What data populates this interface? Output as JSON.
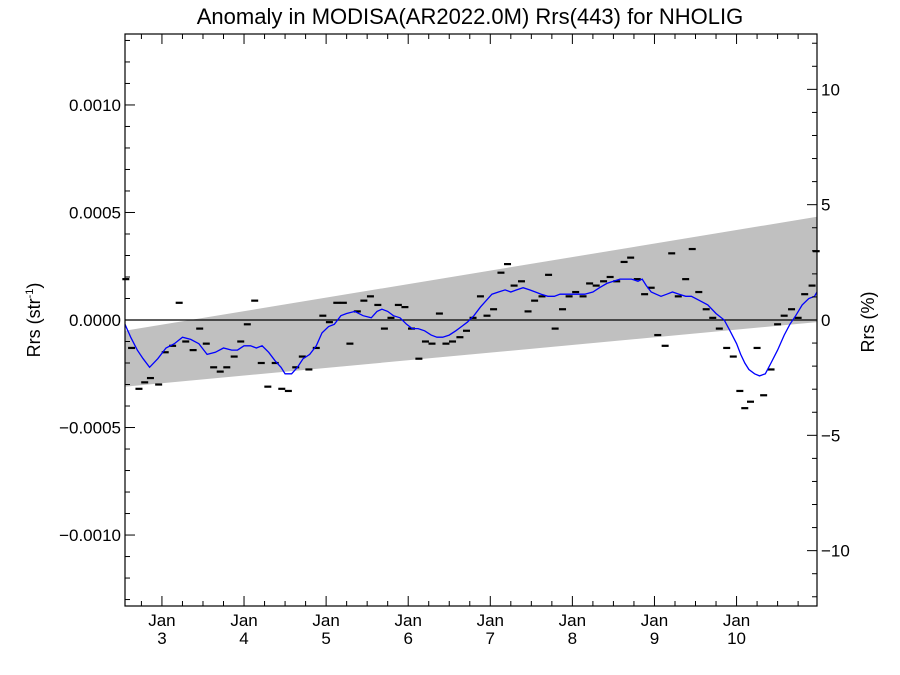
{
  "chart_data": {
    "type": "scatter",
    "title": "Anomaly in MODISA(AR2022.0M) Rrs(443) for NHOLIG",
    "ylabel_left_base": "Rrs (str",
    "ylabel_left_sup": "-1",
    "ylabel_left_close": ")",
    "ylabel_right": "Rrs (%)",
    "xlim": [
      2.55,
      10.98
    ],
    "ylim": [
      -0.00133,
      0.00133
    ],
    "y2lim": [
      -12.4,
      12.4
    ],
    "left_ticks": [
      {
        "value": 0.001,
        "label": "0.0010"
      },
      {
        "value": 0.0005,
        "label": "0.0005"
      },
      {
        "value": 0.0,
        "label": "0.0000"
      },
      {
        "value": -0.0005,
        "label": "−0.0005"
      },
      {
        "value": -0.001,
        "label": "−0.0010"
      }
    ],
    "right_ticks": [
      {
        "value": 10,
        "label": "10"
      },
      {
        "value": 5,
        "label": "5"
      },
      {
        "value": 0,
        "label": "0"
      },
      {
        "value": -5,
        "label": "−5"
      },
      {
        "value": -10,
        "label": "−10"
      }
    ],
    "x_ticks": [
      {
        "value": 3,
        "month": "Jan",
        "year": "3"
      },
      {
        "value": 4,
        "month": "Jan",
        "year": "4"
      },
      {
        "value": 5,
        "month": "Jan",
        "year": "5"
      },
      {
        "value": 6,
        "month": "Jan",
        "year": "6"
      },
      {
        "value": 7,
        "month": "Jan",
        "year": "7"
      },
      {
        "value": 8,
        "month": "Jan",
        "year": "8"
      },
      {
        "value": 9,
        "month": "Jan",
        "year": "9"
      },
      {
        "value": 10,
        "month": "Jan",
        "year": "10"
      }
    ],
    "band": {
      "upper": [
        [
          2.55,
          -5e-05
        ],
        [
          10.98,
          0.00048
        ]
      ],
      "lower": [
        [
          2.55,
          -0.00031
        ],
        [
          10.98,
          -1e-05
        ]
      ],
      "color": "#c0c0c0"
    },
    "zero_line": 0,
    "points": [
      [
        2.56,
        0.00019
      ],
      [
        2.63,
        -0.00013
      ],
      [
        2.72,
        -0.00032
      ],
      [
        2.79,
        -0.00029
      ],
      [
        2.86,
        -0.00027
      ],
      [
        2.96,
        -0.0003
      ],
      [
        3.04,
        -0.00015
      ],
      [
        3.13,
        -0.00012
      ],
      [
        3.21,
        8e-05
      ],
      [
        3.29,
        -0.0001
      ],
      [
        3.38,
        -0.00014
      ],
      [
        3.46,
        -4e-05
      ],
      [
        3.54,
        -0.00011
      ],
      [
        3.63,
        -0.00022
      ],
      [
        3.71,
        -0.00024
      ],
      [
        3.79,
        -0.00022
      ],
      [
        3.88,
        -0.00017
      ],
      [
        3.96,
        -0.0001
      ],
      [
        4.04,
        -2e-05
      ],
      [
        4.13,
        9e-05
      ],
      [
        4.21,
        -0.0002
      ],
      [
        4.29,
        -0.00031
      ],
      [
        4.38,
        -0.0002
      ],
      [
        4.46,
        -0.00032
      ],
      [
        4.54,
        -0.00033
      ],
      [
        4.63,
        -0.00022
      ],
      [
        4.71,
        -0.00017
      ],
      [
        4.79,
        -0.00023
      ],
      [
        4.88,
        -0.00013
      ],
      [
        4.96,
        2e-05
      ],
      [
        5.04,
        -1e-05
      ],
      [
        5.13,
        8e-05
      ],
      [
        5.21,
        8e-05
      ],
      [
        5.29,
        -0.00011
      ],
      [
        5.38,
        4e-05
      ],
      [
        5.46,
        9e-05
      ],
      [
        5.54,
        0.00011
      ],
      [
        5.63,
        7e-05
      ],
      [
        5.71,
        -4e-05
      ],
      [
        5.79,
        1e-05
      ],
      [
        5.88,
        7e-05
      ],
      [
        5.96,
        6e-05
      ],
      [
        6.04,
        -4e-05
      ],
      [
        6.13,
        -0.00018
      ],
      [
        6.21,
        -0.0001
      ],
      [
        6.29,
        -0.00011
      ],
      [
        6.38,
        3e-05
      ],
      [
        6.46,
        -0.00011
      ],
      [
        6.54,
        -0.0001
      ],
      [
        6.63,
        -8e-05
      ],
      [
        6.71,
        -5e-05
      ],
      [
        6.79,
        1e-05
      ],
      [
        6.88,
        0.00011
      ],
      [
        6.96,
        2e-05
      ],
      [
        7.04,
        5e-05
      ],
      [
        7.13,
        0.00022
      ],
      [
        7.21,
        0.00026
      ],
      [
        7.29,
        0.00016
      ],
      [
        7.38,
        0.00018
      ],
      [
        7.46,
        4e-05
      ],
      [
        7.54,
        9e-05
      ],
      [
        7.63,
        0.00011
      ],
      [
        7.71,
        0.00021
      ],
      [
        7.79,
        -4e-05
      ],
      [
        7.88,
        5e-05
      ],
      [
        7.96,
        0.00011
      ],
      [
        8.04,
        0.00013
      ],
      [
        8.13,
        0.00011
      ],
      [
        8.21,
        0.00017
      ],
      [
        8.29,
        0.00016
      ],
      [
        8.38,
        0.00018
      ],
      [
        8.46,
        0.0002
      ],
      [
        8.54,
        0.00018
      ],
      [
        8.63,
        0.00027
      ],
      [
        8.71,
        0.00029
      ],
      [
        8.79,
        0.00019
      ],
      [
        8.88,
        0.00012
      ],
      [
        8.96,
        0.00015
      ],
      [
        9.04,
        -7e-05
      ],
      [
        9.13,
        -0.00012
      ],
      [
        9.21,
        0.00031
      ],
      [
        9.29,
        0.00011
      ],
      [
        9.38,
        0.00019
      ],
      [
        9.46,
        0.00033
      ],
      [
        9.54,
        0.00013
      ],
      [
        9.63,
        5e-05
      ],
      [
        9.71,
        1e-05
      ],
      [
        9.79,
        -4e-05
      ],
      [
        9.88,
        -0.00013
      ],
      [
        9.96,
        -0.00017
      ],
      [
        10.04,
        -0.00033
      ],
      [
        10.1,
        -0.00041
      ],
      [
        10.17,
        -0.00038
      ],
      [
        10.25,
        -0.00013
      ],
      [
        10.33,
        -0.00035
      ],
      [
        10.42,
        -0.00023
      ],
      [
        10.5,
        -2e-05
      ],
      [
        10.58,
        2e-05
      ],
      [
        10.67,
        5e-05
      ],
      [
        10.75,
        1e-05
      ],
      [
        10.83,
        0.00012
      ],
      [
        10.92,
        0.00016
      ],
      [
        10.97,
        0.00032
      ]
    ],
    "smooth_line": {
      "color": "#0000ff",
      "points": [
        [
          2.55,
          -2e-05
        ],
        [
          2.62,
          -8e-05
        ],
        [
          2.7,
          -0.00014
        ],
        [
          2.77,
          -0.00018
        ],
        [
          2.85,
          -0.00022
        ],
        [
          2.95,
          -0.00018
        ],
        [
          3.05,
          -0.00013
        ],
        [
          3.15,
          -0.00011
        ],
        [
          3.25,
          -8e-05
        ],
        [
          3.35,
          -9e-05
        ],
        [
          3.45,
          -0.00011
        ],
        [
          3.55,
          -0.00016
        ],
        [
          3.65,
          -0.00015
        ],
        [
          3.75,
          -0.00013
        ],
        [
          3.85,
          -0.00014
        ],
        [
          3.92,
          -0.00014
        ],
        [
          4.0,
          -0.00012
        ],
        [
          4.08,
          -0.00012
        ],
        [
          4.15,
          -0.00013
        ],
        [
          4.22,
          -0.00012
        ],
        [
          4.3,
          -0.00015
        ],
        [
          4.38,
          -0.00019
        ],
        [
          4.45,
          -0.00022
        ],
        [
          4.5,
          -0.00025
        ],
        [
          4.58,
          -0.00025
        ],
        [
          4.65,
          -0.00022
        ],
        [
          4.72,
          -0.00018
        ],
        [
          4.8,
          -0.00016
        ],
        [
          4.88,
          -0.00012
        ],
        [
          4.95,
          -6e-05
        ],
        [
          5.03,
          -3e-05
        ],
        [
          5.1,
          -2e-05
        ],
        [
          5.18,
          2e-05
        ],
        [
          5.25,
          3e-05
        ],
        [
          5.35,
          4e-05
        ],
        [
          5.45,
          2e-05
        ],
        [
          5.55,
          1e-05
        ],
        [
          5.62,
          4e-05
        ],
        [
          5.68,
          5e-05
        ],
        [
          5.75,
          4e-05
        ],
        [
          5.82,
          2e-05
        ],
        [
          5.9,
          1e-05
        ],
        [
          5.98,
          -2e-05
        ],
        [
          6.05,
          -4e-05
        ],
        [
          6.12,
          -4e-05
        ],
        [
          6.2,
          -5e-05
        ],
        [
          6.28,
          -7e-05
        ],
        [
          6.35,
          -8e-05
        ],
        [
          6.42,
          -8e-05
        ],
        [
          6.5,
          -7e-05
        ],
        [
          6.58,
          -5e-05
        ],
        [
          6.65,
          -3e-05
        ],
        [
          6.72,
          -1e-05
        ],
        [
          6.8,
          2e-05
        ],
        [
          6.88,
          6e-05
        ],
        [
          6.95,
          9e-05
        ],
        [
          7.02,
          0.00012
        ],
        [
          7.1,
          0.00013
        ],
        [
          7.18,
          0.00014
        ],
        [
          7.25,
          0.00013
        ],
        [
          7.32,
          0.00014
        ],
        [
          7.4,
          0.00015
        ],
        [
          7.48,
          0.00014
        ],
        [
          7.55,
          0.00013
        ],
        [
          7.62,
          0.00012
        ],
        [
          7.7,
          0.00011
        ],
        [
          7.78,
          0.00011
        ],
        [
          7.85,
          0.00012
        ],
        [
          7.95,
          0.00012
        ],
        [
          8.05,
          0.00012
        ],
        [
          8.15,
          0.00012
        ],
        [
          8.25,
          0.00013
        ],
        [
          8.33,
          0.00015
        ],
        [
          8.42,
          0.00017
        ],
        [
          8.5,
          0.00018
        ],
        [
          8.58,
          0.00019
        ],
        [
          8.65,
          0.00019
        ],
        [
          8.72,
          0.00019
        ],
        [
          8.8,
          0.00018
        ],
        [
          8.85,
          0.00019
        ],
        [
          8.9,
          0.00016
        ],
        [
          8.96,
          0.00013
        ],
        [
          9.02,
          0.00012
        ],
        [
          9.08,
          0.00011
        ],
        [
          9.15,
          0.00012
        ],
        [
          9.22,
          0.00013
        ],
        [
          9.3,
          0.00012
        ],
        [
          9.38,
          0.00011
        ],
        [
          9.45,
          0.00011
        ],
        [
          9.55,
          9e-05
        ],
        [
          9.65,
          7e-05
        ],
        [
          9.75,
          3e-05
        ],
        [
          9.85,
          0.0
        ],
        [
          9.92,
          -5e-05
        ],
        [
          10.0,
          -0.00011
        ],
        [
          10.05,
          -0.00016
        ],
        [
          10.1,
          -0.0002
        ],
        [
          10.15,
          -0.00023
        ],
        [
          10.22,
          -0.00025
        ],
        [
          10.28,
          -0.00026
        ],
        [
          10.35,
          -0.00025
        ],
        [
          10.42,
          -0.0002
        ],
        [
          10.5,
          -0.00014
        ],
        [
          10.58,
          -7e-05
        ],
        [
          10.65,
          -2e-05
        ],
        [
          10.72,
          2e-05
        ],
        [
          10.8,
          7e-05
        ],
        [
          10.88,
          0.0001
        ],
        [
          10.95,
          0.00011
        ],
        [
          10.98,
          0.00013
        ]
      ]
    }
  }
}
